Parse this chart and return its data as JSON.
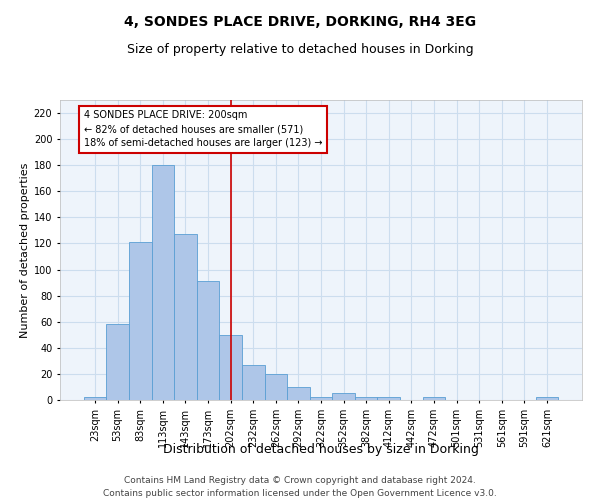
{
  "title1": "4, SONDES PLACE DRIVE, DORKING, RH4 3EG",
  "title2": "Size of property relative to detached houses in Dorking",
  "xlabel": "Distribution of detached houses by size in Dorking",
  "ylabel": "Number of detached properties",
  "footer1": "Contains HM Land Registry data © Crown copyright and database right 2024.",
  "footer2": "Contains public sector information licensed under the Open Government Licence v3.0.",
  "annotation_line1": "4 SONDES PLACE DRIVE: 200sqm",
  "annotation_line2": "← 82% of detached houses are smaller (571)",
  "annotation_line3": "18% of semi-detached houses are larger (123) →",
  "bin_labels": [
    "23sqm",
    "53sqm",
    "83sqm",
    "113sqm",
    "143sqm",
    "173sqm",
    "202sqm",
    "232sqm",
    "262sqm",
    "292sqm",
    "322sqm",
    "352sqm",
    "382sqm",
    "412sqm",
    "442sqm",
    "472sqm",
    "501sqm",
    "531sqm",
    "561sqm",
    "591sqm",
    "621sqm"
  ],
  "bar_values": [
    2,
    58,
    121,
    180,
    127,
    91,
    50,
    27,
    20,
    10,
    2,
    5,
    2,
    2,
    0,
    2,
    0,
    0,
    0,
    0,
    2
  ],
  "bar_color": "#aec6e8",
  "bar_edge_color": "#5a9fd4",
  "reference_line_x": 6,
  "reference_line_color": "#cc0000",
  "annotation_box_edge_color": "#cc0000",
  "ylim": [
    0,
    230
  ],
  "yticks": [
    0,
    20,
    40,
    60,
    80,
    100,
    120,
    140,
    160,
    180,
    200,
    220
  ],
  "grid_color": "#ccddee",
  "background_color": "#eef4fb",
  "title1_fontsize": 10,
  "title2_fontsize": 9,
  "xlabel_fontsize": 9,
  "ylabel_fontsize": 8,
  "footer_fontsize": 6.5,
  "tick_fontsize": 7,
  "annotation_fontsize": 7
}
